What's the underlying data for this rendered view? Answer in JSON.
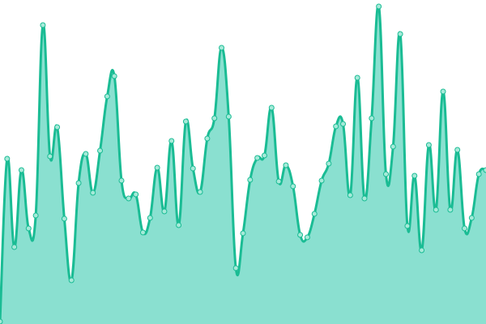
{
  "chart_data": {
    "type": "area",
    "title": "",
    "xlabel": "",
    "ylabel": "",
    "grid": false,
    "legend": "none",
    "curve": "smooth",
    "markers": true,
    "ylim": [
      0,
      400
    ],
    "x": [
      0,
      1,
      2,
      3,
      4,
      5,
      6,
      7,
      8,
      9,
      10,
      11,
      12,
      13,
      14,
      15,
      16,
      17,
      18,
      19,
      20,
      21,
      22,
      23,
      24,
      25,
      26,
      27,
      28,
      29,
      30,
      31,
      32,
      33,
      34,
      35,
      36,
      37,
      38,
      39,
      40,
      41,
      42,
      43,
      44,
      45,
      46,
      47,
      48,
      49,
      50,
      51,
      52,
      53,
      54,
      55,
      56,
      57,
      58,
      59,
      60,
      61,
      62,
      63,
      64,
      65,
      66,
      67,
      68
    ],
    "series": [
      {
        "values": [
          3,
          204,
          95,
          190,
          118,
          134,
          369,
          207,
          243,
          130,
          54,
          174,
          210,
          162,
          214,
          281,
          306,
          177,
          155,
          160,
          113,
          131,
          193,
          139,
          226,
          122,
          250,
          192,
          163,
          229,
          254,
          341,
          256,
          69,
          112,
          178,
          205,
          208,
          267,
          176,
          196,
          170,
          110,
          107,
          136,
          177,
          198,
          244,
          247,
          159,
          304,
          155,
          254,
          392,
          185,
          219,
          358,
          121,
          183,
          91,
          221,
          141,
          287,
          141,
          215,
          118,
          131,
          185,
          190
        ],
        "line_color": "#1abc94",
        "fill_color": "#8ae0d0",
        "marker_fill": "#a6ead9"
      }
    ]
  }
}
